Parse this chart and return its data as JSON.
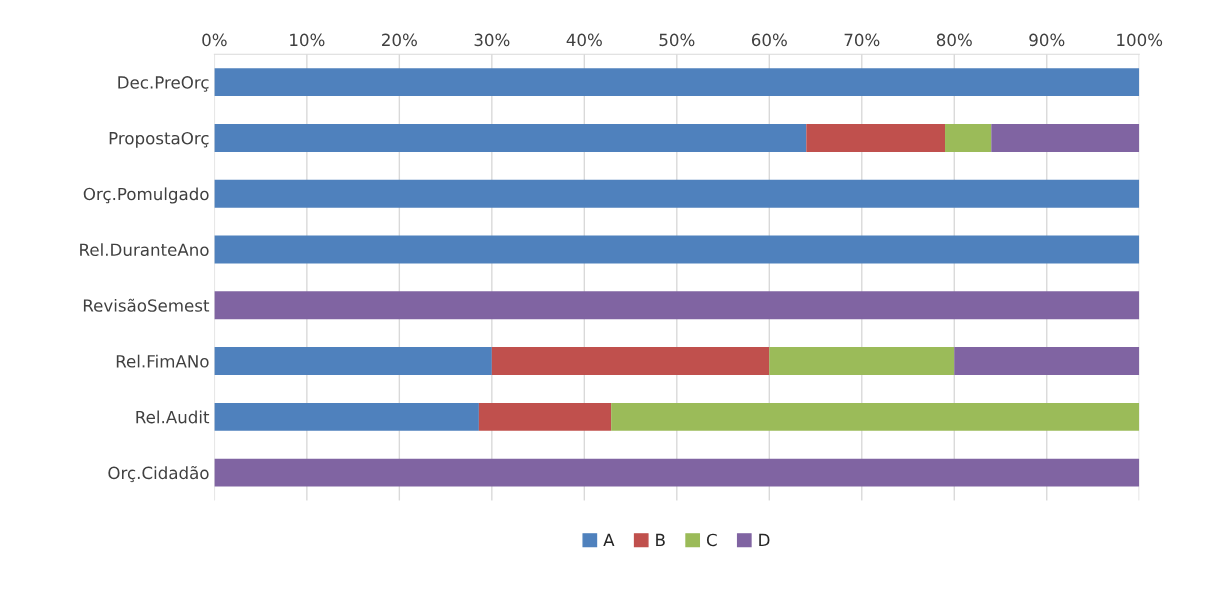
{
  "chart_data": {
    "type": "bar",
    "orientation": "horizontal",
    "stacked": true,
    "categories": [
      "Dec.PreOrç",
      "PropostaOrç",
      "Orç.Pomulgado",
      "Rel.DuranteAno",
      "RevisãoSemest",
      "Rel.FimANo",
      "Rel.Audit",
      "Orç.Cidadão"
    ],
    "series": [
      {
        "name": "A",
        "color": "#4f81bd",
        "values": [
          100,
          64,
          100,
          100,
          0,
          30,
          28.6,
          0
        ]
      },
      {
        "name": "B",
        "color": "#c0504d",
        "values": [
          0,
          15,
          0,
          0,
          0,
          30,
          14.3,
          0
        ]
      },
      {
        "name": "C",
        "color": "#9bbb59",
        "values": [
          0,
          5,
          0,
          0,
          0,
          20,
          57.1,
          0
        ]
      },
      {
        "name": "D",
        "color": "#8064a2",
        "values": [
          0,
          16,
          0,
          0,
          100,
          20,
          0,
          100
        ]
      }
    ],
    "xlim": [
      0,
      100
    ],
    "xticks": [
      {
        "value": 0,
        "label": "0%"
      },
      {
        "value": 10,
        "label": "10%"
      },
      {
        "value": 20,
        "label": "20%"
      },
      {
        "value": 30,
        "label": "30%"
      },
      {
        "value": 40,
        "label": "40%"
      },
      {
        "value": 50,
        "label": "50%"
      },
      {
        "value": 60,
        "label": "60%"
      },
      {
        "value": 70,
        "label": "70%"
      },
      {
        "value": 80,
        "label": "80%"
      },
      {
        "value": 90,
        "label": "90%"
      },
      {
        "value": 100,
        "label": "100%"
      }
    ],
    "grid": "x",
    "legend": "bottom"
  }
}
